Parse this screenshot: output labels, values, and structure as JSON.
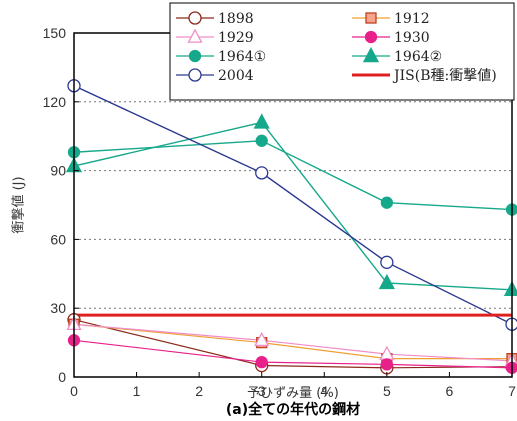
{
  "chart_data": {
    "type": "line",
    "xlabel": "予ひずみ量 (%)",
    "ylabel": "衝撃値 (J)",
    "caption": "(a)全ての年代の鋼材",
    "xlim": [
      0,
      7
    ],
    "ylim": [
      0,
      150
    ],
    "xticks": [
      "0",
      "1",
      "2",
      "3",
      "4",
      "5",
      "6",
      "7"
    ],
    "yticks": [
      "0",
      "30",
      "60",
      "90",
      "120",
      "150"
    ],
    "grid": "horizontal dotted",
    "legend_position": "top-right",
    "series": [
      {
        "name": "1898",
        "color": "#8b2a1a",
        "marker": "circle-open",
        "x": [
          0,
          3,
          5,
          7
        ],
        "y": [
          25,
          5,
          4,
          4.5
        ]
      },
      {
        "name": "1912",
        "color": "#f0a030",
        "marker": "square-filled",
        "marker_fill": "#f4a58a",
        "marker_stroke": "#c04020",
        "x": [
          0,
          3,
          5,
          7
        ],
        "y": [
          23,
          15,
          8,
          8
        ]
      },
      {
        "name": "1929",
        "color": "#f08ec8",
        "marker": "triangle-open",
        "x": [
          0,
          3,
          5,
          7
        ],
        "y": [
          23,
          16,
          10,
          7
        ]
      },
      {
        "name": "1930",
        "color": "#e8208a",
        "marker": "circle-filled",
        "x": [
          0,
          3,
          5,
          7
        ],
        "y": [
          16,
          6.5,
          5.5,
          4
        ]
      },
      {
        "name": "1964①",
        "color": "#16a88a",
        "marker": "circle-filled",
        "x": [
          0,
          3,
          5,
          7
        ],
        "y": [
          98,
          103,
          76,
          73
        ]
      },
      {
        "name": "1964②",
        "color": "#16a88a",
        "marker": "triangle-filled",
        "x": [
          0,
          3,
          5,
          7
        ],
        "y": [
          92,
          111,
          41,
          38
        ]
      },
      {
        "name": "2004",
        "color": "#2b3990",
        "marker": "circle-open",
        "x": [
          0,
          3,
          5,
          7
        ],
        "y": [
          127,
          89,
          50,
          23
        ]
      }
    ],
    "reference_line": {
      "name": "JIS(B種:衝撃値)",
      "color": "#e02020",
      "y": 27
    }
  }
}
